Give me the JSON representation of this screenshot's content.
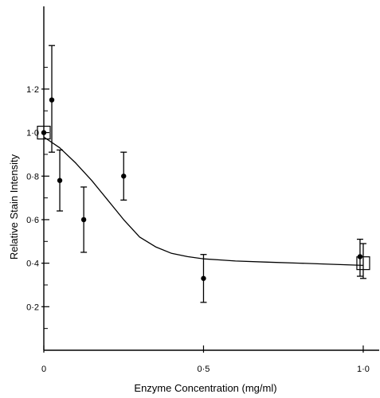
{
  "chart_data": {
    "type": "scatter",
    "title": "",
    "xlabel": "Enzyme Concentration (mg/ml)",
    "ylabel": "Relative Stain Intensity",
    "xlim": [
      0,
      1.05
    ],
    "ylim": [
      0,
      1.58
    ],
    "x_ticks": [
      0,
      0.5,
      1.0
    ],
    "x_tick_labels": [
      "0",
      "0·5",
      "1·0"
    ],
    "y_ticks": [
      0.2,
      0.4,
      0.6,
      0.8,
      1.0,
      1.2
    ],
    "y_tick_labels": [
      "0·2",
      "0·4",
      "0·6",
      "0·8",
      "1·0",
      "1·2"
    ],
    "y_minor_ticks": [
      0.1,
      0.3,
      0.5,
      0.7,
      0.9,
      1.1,
      1.3
    ],
    "grid": false,
    "series": [
      {
        "marker": "filled-circle",
        "points": [
          {
            "x": 0.0,
            "y": 1.0,
            "err_low": 1.0,
            "err_high": 1.0
          },
          {
            "x": 0.025,
            "y": 1.15,
            "err_low": 0.91,
            "err_high": 1.4
          },
          {
            "x": 0.05,
            "y": 0.78,
            "err_low": 0.64,
            "err_high": 0.92
          },
          {
            "x": 0.125,
            "y": 0.6,
            "err_low": 0.45,
            "err_high": 0.75
          },
          {
            "x": 0.25,
            "y": 0.8,
            "err_low": 0.69,
            "err_high": 0.91
          },
          {
            "x": 0.5,
            "y": 0.33,
            "err_low": 0.22,
            "err_high": 0.44
          },
          {
            "x": 0.99,
            "y": 0.43,
            "err_low": 0.34,
            "err_high": 0.51
          }
        ]
      },
      {
        "marker": "open-square",
        "points": [
          {
            "x": 0.0,
            "y": 1.0
          },
          {
            "x": 1.0,
            "y": 0.4,
            "err_low": 0.33,
            "err_high": 0.49
          }
        ]
      }
    ],
    "fitted_curve": {
      "x": [
        0,
        0.05,
        0.1,
        0.15,
        0.2,
        0.25,
        0.3,
        0.35,
        0.4,
        0.45,
        0.5,
        0.55,
        0.6,
        0.7,
        0.8,
        0.9,
        1.0
      ],
      "y": [
        0.98,
        0.93,
        0.86,
        0.78,
        0.69,
        0.6,
        0.52,
        0.475,
        0.445,
        0.43,
        0.42,
        0.415,
        0.41,
        0.405,
        0.4,
        0.395,
        0.39
      ]
    }
  }
}
